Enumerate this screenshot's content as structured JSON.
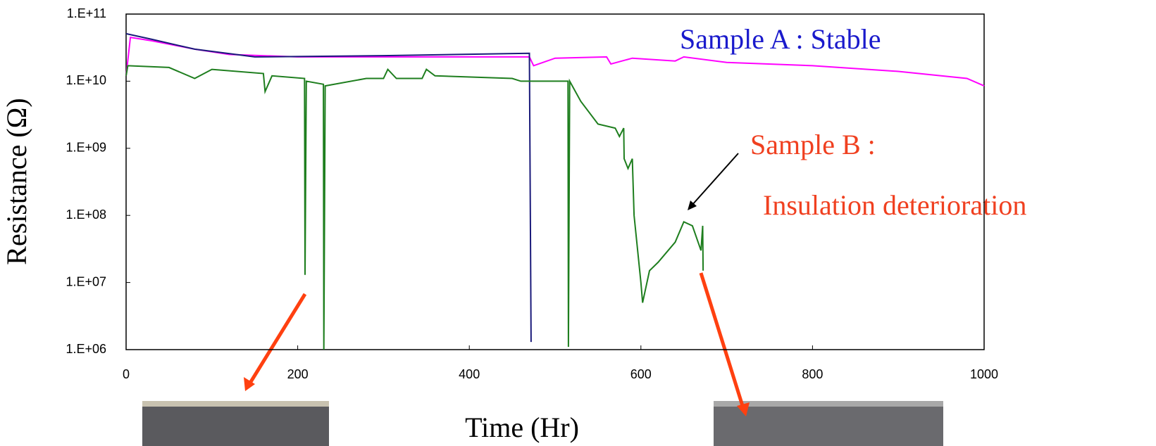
{
  "chart_data": {
    "type": "line",
    "y_label": "Resistance (Ω)",
    "x_label": "Time (Hr)",
    "annotations": [
      "Sample A : Stable",
      "Sample B :",
      "Insulation deterioration"
    ],
    "xlim": [
      0,
      1000
    ],
    "xticks": [
      0,
      200,
      400,
      600,
      800,
      1000
    ],
    "ylim": [
      1000000,
      100000000000
    ],
    "log_y": true,
    "yticks": [
      {
        "value": 1000000,
        "label": "1.E+06"
      },
      {
        "value": 10000000,
        "label": "1.E+07"
      },
      {
        "value": 100000000,
        "label": "1.E+08"
      },
      {
        "value": 1000000000,
        "label": "1.E+09"
      },
      {
        "value": 10000000000,
        "label": "1.E+10"
      },
      {
        "value": 100000000000,
        "label": "1.E+11"
      }
    ],
    "series": [
      {
        "color": "#ff00ff",
        "x": [
          0,
          5,
          30,
          80,
          120,
          200,
          300,
          470,
          475,
          500,
          560,
          565,
          590,
          640,
          650,
          700,
          800,
          900,
          980,
          1000
        ],
        "values": [
          12000000000,
          45000000000,
          40000000000,
          30000000000,
          25000000000,
          23000000000,
          23000000000,
          23000000000,
          17000000000,
          22000000000,
          23000000000,
          18000000000,
          22000000000,
          20000000000,
          23000000000,
          19000000000,
          17000000000,
          14000000000,
          11000000000,
          8500000000
        ]
      },
      {
        "color": "#1a1a7a",
        "x": [
          0,
          30,
          80,
          150,
          300,
          470,
          472
        ],
        "values": [
          51000000000,
          42000000000,
          30000000000,
          23000000000,
          24000000000,
          26000000000,
          1300000
        ]
      },
      {
        "color": "#1e7e1e",
        "x": [
          0,
          2,
          50,
          80,
          100,
          160,
          162,
          170,
          208,
          208.5,
          210,
          230,
          230.5,
          232,
          280,
          300,
          305,
          315,
          345,
          350,
          360,
          450,
          460,
          515,
          515.5,
          517,
          530,
          550,
          570,
          575,
          580,
          580.5,
          585,
          590,
          592,
          600,
          602,
          610,
          620,
          640,
          650,
          660,
          670,
          672,
          672.5
        ],
        "values": [
          12000000000,
          17000000000,
          16000000000,
          11000000000,
          15000000000,
          13000000000,
          7000000000,
          12000000000,
          11000000000,
          13000000,
          10000000000,
          9000000000,
          1000000,
          8500000000,
          11000000000,
          11000000000,
          15000000000,
          11000000000,
          11000000000,
          15000000000,
          12000000000,
          11000000000,
          10000000000,
          10000000000,
          1100000,
          10000000000,
          5000000000,
          2300000000,
          2000000000,
          1500000000,
          2000000000,
          700000000,
          500000000,
          700000000,
          100000000,
          10000000,
          5000000,
          15000000,
          20000000,
          40000000,
          80000000,
          70000000,
          30000000,
          70000000,
          15000000
        ]
      }
    ]
  }
}
